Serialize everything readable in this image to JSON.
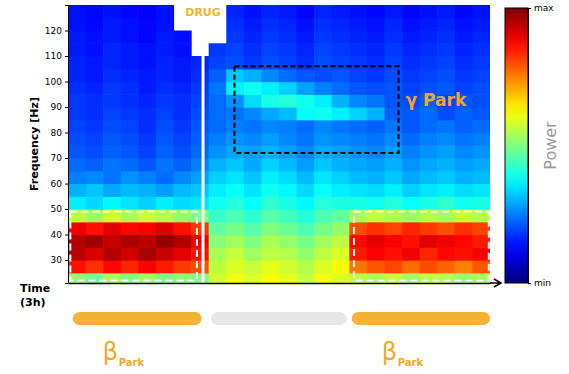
{
  "chart_data": {
    "type": "heatmap",
    "y_label": "Frequency [Hz]",
    "x_label": "Time (3h)",
    "x": [
      0,
      7.5,
      15,
      22.5,
      30,
      37.5,
      45,
      52.5,
      60,
      67.5,
      75,
      82.5,
      90,
      97.5,
      105,
      112.5,
      120,
      127.5,
      135,
      142.5,
      150,
      157.5,
      165,
      172.5,
      180
    ],
    "y": [
      20,
      25,
      30,
      35,
      40,
      45,
      50,
      55,
      60,
      65,
      70,
      75,
      80,
      85,
      90,
      95,
      100,
      105,
      110,
      115,
      120,
      125,
      130
    ],
    "xlim": [
      0,
      180
    ],
    "ylim": [
      21,
      130
    ],
    "yticks": [
      30,
      40,
      50,
      60,
      70,
      80,
      90,
      100,
      110,
      120
    ],
    "tick_labels": "y",
    "values": [
      [
        5.2,
        4.8,
        5.4,
        5.0,
        5.3,
        4.9,
        5.1,
        5.0,
        5.8,
        6.1,
        5.9,
        6.2,
        6.0,
        5.7,
        6.1,
        5.9,
        5.6,
        5.4,
        5.7,
        5.3,
        5.6,
        5.5,
        5.2,
        5.4
      ],
      [
        8.6,
        8.3,
        8.7,
        8.4,
        8.8,
        8.5,
        8.2,
        8.0,
        5.6,
        5.9,
        5.7,
        6.0,
        5.8,
        5.5,
        5.9,
        6.2,
        7.6,
        7.9,
        8.1,
        7.7,
        8.0,
        7.8,
        7.5,
        7.9
      ],
      [
        9.4,
        9.1,
        9.5,
        9.2,
        9.6,
        9.3,
        9.0,
        8.6,
        5.4,
        5.7,
        5.3,
        5.6,
        5.5,
        5.2,
        5.6,
        5.9,
        8.5,
        8.8,
        8.6,
        8.9,
        8.4,
        8.7,
        8.6,
        8.8
      ],
      [
        9.5,
        9.7,
        9.3,
        9.6,
        9.4,
        9.8,
        9.5,
        8.9,
        5.1,
        5.3,
        5.0,
        5.4,
        5.2,
        4.9,
        5.3,
        5.6,
        8.7,
        9.0,
        8.8,
        8.6,
        9.0,
        8.9,
        8.7,
        8.5
      ],
      [
        8.9,
        8.6,
        9.0,
        8.7,
        8.8,
        9.1,
        8.6,
        8.2,
        4.7,
        4.9,
        4.6,
        5.0,
        4.8,
        4.5,
        4.9,
        5.2,
        8.0,
        8.3,
        8.1,
        8.4,
        8.2,
        8.0,
        8.3,
        8.1
      ],
      [
        5.6,
        5.3,
        5.8,
        5.4,
        5.7,
        5.5,
        5.2,
        5.0,
        4.3,
        4.5,
        4.2,
        4.6,
        4.4,
        4.1,
        4.5,
        4.7,
        5.4,
        5.7,
        5.5,
        5.3,
        5.6,
        5.4,
        5.8,
        5.5
      ],
      [
        3.6,
        3.4,
        3.7,
        3.5,
        3.3,
        3.6,
        3.4,
        3.5,
        3.9,
        4.1,
        3.8,
        4.2,
        4.0,
        3.7,
        4.1,
        4.0,
        4.0,
        3.9,
        4.1,
        3.8,
        4.0,
        4.2,
        3.9,
        4.0
      ],
      [
        3.0,
        3.2,
        2.9,
        3.1,
        3.0,
        2.8,
        3.1,
        3.2,
        3.6,
        3.8,
        3.5,
        3.9,
        3.7,
        3.4,
        3.8,
        3.6,
        3.5,
        3.4,
        3.6,
        3.3,
        3.5,
        3.6,
        3.4,
        3.5
      ],
      [
        2.5,
        2.6,
        2.4,
        2.7,
        2.5,
        2.3,
        2.6,
        2.8,
        3.3,
        3.5,
        3.2,
        3.6,
        3.4,
        3.1,
        3.5,
        3.3,
        3.1,
        3.0,
        3.2,
        2.9,
        3.1,
        3.2,
        3.0,
        3.1
      ],
      [
        2.3,
        2.2,
        2.4,
        2.3,
        2.1,
        2.4,
        2.2,
        2.5,
        3.0,
        3.2,
        2.9,
        3.3,
        3.1,
        2.8,
        3.2,
        3.0,
        2.9,
        2.8,
        3.0,
        2.7,
        2.9,
        3.0,
        2.8,
        2.9
      ],
      [
        2.1,
        2.0,
        2.2,
        2.1,
        1.9,
        2.2,
        2.0,
        2.3,
        2.7,
        2.9,
        2.8,
        3.0,
        2.8,
        2.6,
        2.9,
        2.8,
        2.7,
        2.6,
        2.8,
        2.5,
        2.7,
        2.8,
        2.6,
        2.7
      ],
      [
        2.0,
        1.9,
        2.1,
        2.0,
        1.8,
        2.1,
        1.9,
        2.2,
        2.5,
        2.7,
        2.6,
        2.8,
        2.6,
        2.4,
        2.7,
        2.6,
        2.5,
        2.4,
        2.6,
        2.3,
        2.5,
        2.6,
        2.4,
        2.5
      ],
      [
        1.9,
        1.8,
        2.0,
        1.9,
        1.7,
        2.0,
        1.8,
        2.1,
        2.3,
        2.5,
        2.4,
        2.6,
        2.5,
        2.3,
        2.6,
        2.4,
        2.3,
        2.2,
        2.4,
        2.1,
        2.3,
        2.4,
        2.2,
        2.3
      ],
      [
        1.8,
        1.7,
        1.9,
        1.8,
        1.7,
        1.9,
        1.7,
        2.0,
        2.3,
        2.4,
        2.6,
        2.9,
        3.1,
        3.8,
        3.9,
        3.6,
        3.3,
        3.0,
        2.2,
        2.1,
        2.3,
        2.0,
        2.2,
        2.1
      ],
      [
        1.8,
        1.7,
        1.8,
        1.7,
        1.6,
        1.8,
        1.7,
        1.9,
        2.3,
        2.7,
        3.4,
        4.0,
        4.1,
        3.9,
        3.6,
        3.0,
        2.6,
        2.4,
        2.1,
        2.0,
        2.2,
        1.9,
        2.1,
        2.0
      ],
      [
        1.7,
        1.6,
        1.8,
        1.7,
        1.5,
        1.7,
        1.6,
        1.8,
        2.4,
        3.6,
        3.9,
        3.6,
        3.3,
        2.8,
        2.5,
        2.3,
        2.1,
        2.0,
        2.1,
        1.9,
        2.0,
        2.1,
        1.9,
        2.0
      ],
      [
        1.6,
        1.5,
        1.7,
        1.6,
        1.5,
        1.6,
        1.5,
        1.7,
        2.2,
        3.2,
        3.0,
        2.6,
        2.3,
        2.1,
        2.0,
        2.1,
        1.9,
        1.8,
        2.0,
        1.8,
        1.9,
        2.0,
        1.8,
        1.9
      ],
      [
        1.6,
        1.5,
        1.6,
        1.5,
        1.4,
        1.6,
        1.5,
        1.6,
        1.9,
        2.0,
        1.8,
        2.0,
        1.9,
        1.7,
        2.0,
        1.9,
        1.8,
        1.7,
        1.9,
        1.7,
        1.8,
        1.9,
        1.7,
        1.8
      ],
      [
        1.5,
        1.4,
        1.6,
        1.5,
        1.4,
        1.5,
        1.4,
        null,
        1.8,
        1.9,
        1.7,
        1.9,
        1.8,
        1.6,
        1.9,
        1.8,
        1.7,
        1.6,
        1.8,
        1.6,
        1.7,
        1.8,
        1.6,
        1.7
      ],
      [
        1.5,
        1.4,
        1.5,
        1.4,
        1.3,
        1.5,
        1.4,
        null,
        null,
        1.8,
        1.6,
        1.8,
        1.7,
        1.5,
        1.8,
        1.7,
        1.6,
        1.5,
        1.7,
        1.5,
        1.6,
        1.7,
        1.5,
        1.6
      ],
      [
        1.4,
        1.3,
        1.5,
        1.4,
        1.3,
        1.4,
        null,
        null,
        null,
        1.7,
        1.5,
        1.7,
        1.6,
        1.4,
        1.7,
        1.6,
        1.5,
        1.4,
        1.6,
        1.4,
        1.5,
        1.6,
        1.4,
        1.5
      ],
      [
        1.4,
        1.3,
        1.4,
        1.3,
        1.2,
        1.4,
        null,
        null,
        null,
        1.6,
        1.4,
        1.6,
        1.5,
        1.3,
        1.6,
        1.5,
        1.4,
        1.3,
        1.5,
        1.3,
        1.4,
        1.5,
        1.3,
        1.4
      ]
    ],
    "colorbar": {
      "label": "Power",
      "range": [
        0,
        10
      ],
      "ticks": [
        {
          "value": 10,
          "label": "max"
        },
        {
          "value": 0,
          "label": "min"
        }
      ]
    },
    "annotations": [
      {
        "text": "DRUG",
        "x": 57.6,
        "color": "#f0b429"
      },
      {
        "text": "γ Park",
        "x": [
          71,
          141
        ],
        "y": [
          72,
          106
        ],
        "color": "#000000",
        "line_style": "dashed"
      },
      {
        "x": [
          1,
          55
        ],
        "y": [
          22,
          49
        ],
        "color": "#ffffff",
        "line_style": "dashed"
      },
      {
        "x": [
          122,
          179.5
        ],
        "y": [
          22,
          49
        ],
        "color": "#ffffff",
        "line_style": "dashed"
      }
    ],
    "states": [
      {
        "text": "β",
        "subscript": "Park",
        "x": [
          2,
          57
        ],
        "color": "#f5b335"
      },
      {
        "x": [
          61,
          119
        ],
        "color": "#e6e6e6"
      },
      {
        "text": "β",
        "subscript": "Park",
        "x": [
          121,
          180
        ],
        "color": "#f5b335"
      }
    ]
  }
}
